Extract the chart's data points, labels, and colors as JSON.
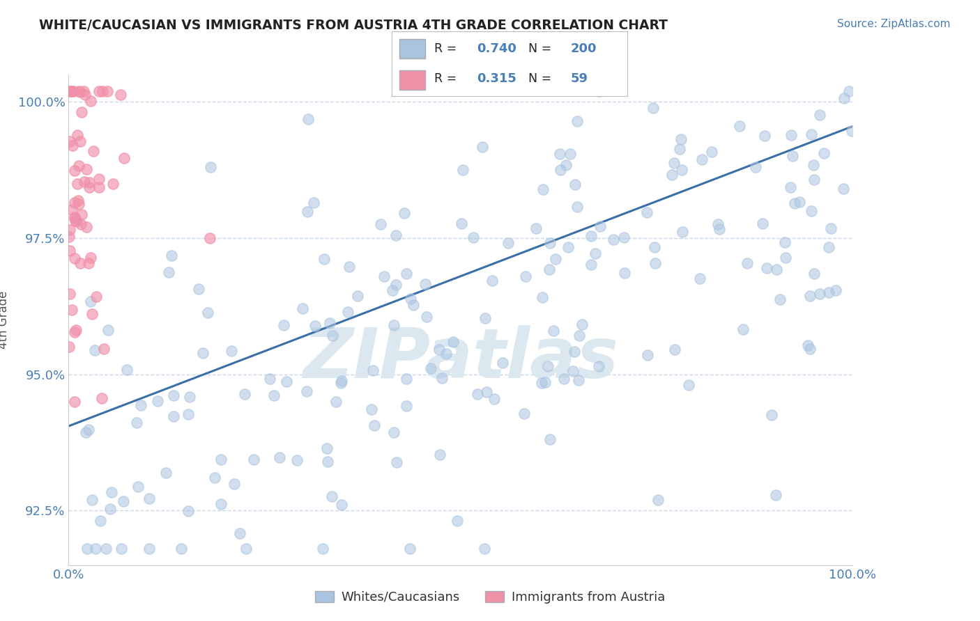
{
  "title": "WHITE/CAUCASIAN VS IMMIGRANTS FROM AUSTRIA 4TH GRADE CORRELATION CHART",
  "source_text": "Source: ZipAtlas.com",
  "ylabel": "4th Grade",
  "xlim": [
    0.0,
    1.0
  ],
  "ylim": [
    0.915,
    1.005
  ],
  "yticks": [
    0.925,
    0.95,
    0.975,
    1.0
  ],
  "ytick_labels": [
    "92.5%",
    "95.0%",
    "97.5%",
    "100.0%"
  ],
  "xtick_labels": [
    "0.0%",
    "100.0%"
  ],
  "xticks": [
    0.0,
    1.0
  ],
  "R_blue": 0.74,
  "N_blue": 200,
  "R_pink": 0.315,
  "N_pink": 59,
  "blue_color": "#aac4e0",
  "pink_color": "#f090a8",
  "line_color": "#3a6ea8",
  "grid_color": "#c8d8e8",
  "text_color": "#4a7fb5",
  "watermark_color": "#dce8f0",
  "legend_label_blue": "Whites/Caucasians",
  "legend_label_pink": "Immigrants from Austria",
  "blue_line_start_x": 0.0,
  "blue_line_start_y": 0.9405,
  "blue_line_end_x": 1.0,
  "blue_line_end_y": 0.9955,
  "background_color": "#ffffff"
}
